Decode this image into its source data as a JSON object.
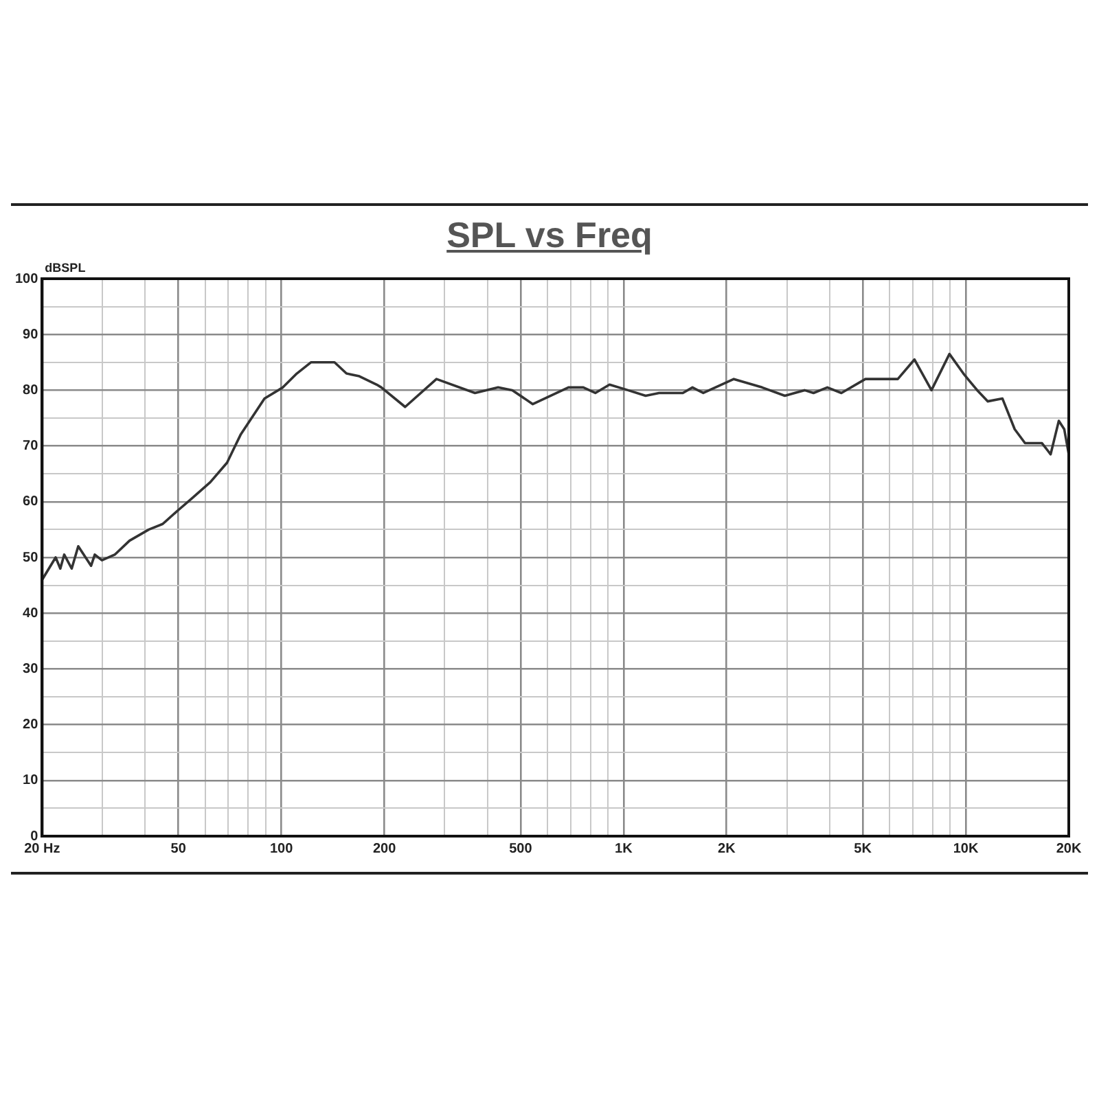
{
  "chart_data": {
    "type": "line",
    "title": "SPL vs Freq",
    "ylabel": "dBSPL",
    "x": [
      20,
      21.9,
      22.6,
      23.2,
      24.4,
      25.5,
      27.8,
      28.5,
      29.9,
      32.6,
      36,
      41,
      45,
      50,
      54.6,
      62,
      69.4,
      72.6,
      76,
      89.3,
      101,
      111,
      122,
      143,
      155,
      169,
      190,
      196,
      230,
      284,
      368,
      430,
      473,
      543,
      690,
      763,
      827,
      910,
      1030,
      1160,
      1270,
      1490,
      1590,
      1710,
      2100,
      2540,
      2960,
      3380,
      3590,
      3940,
      4330,
      5090,
      5980,
      6330,
      7080,
      7940,
      8960,
      9840,
      10300,
      10800,
      11600,
      12800,
      13900,
      14900,
      16700,
      17700,
      18700,
      19400,
      20000
    ],
    "series": [
      {
        "color": "#333333",
        "values": [
          46,
          50,
          48,
          50.5,
          48,
          52,
          48.5,
          50.5,
          49.5,
          50.5,
          53,
          55,
          56,
          58.5,
          60.5,
          63.5,
          67,
          69.5,
          72,
          78.5,
          80.5,
          83,
          85,
          85,
          83,
          82.5,
          81,
          80.5,
          77,
          82,
          79.5,
          80.5,
          80,
          77.5,
          80.5,
          80.5,
          79.5,
          81,
          80,
          79,
          79.5,
          79.5,
          80.5,
          79.5,
          82,
          80.5,
          79,
          80,
          79.5,
          80.5,
          79.5,
          82,
          82,
          82,
          85.5,
          80,
          86.5,
          83,
          81.5,
          80,
          78,
          78.5,
          73,
          70.5,
          70.5,
          68.5,
          74.5,
          73,
          68.5
        ]
      }
    ],
    "xlim": [
      20,
      20000
    ],
    "ylim": [
      0,
      100
    ],
    "log": "x",
    "xticks": [
      {
        "value": 20,
        "label": "20 Hz"
      },
      {
        "value": 30,
        "label": null
      },
      {
        "value": 40,
        "label": null
      },
      50,
      {
        "value": 60,
        "label": null
      },
      {
        "value": 70,
        "label": null
      },
      {
        "value": 80,
        "label": null
      },
      {
        "value": 90,
        "label": null
      },
      100,
      200,
      {
        "value": 300,
        "label": null
      },
      {
        "value": 400,
        "label": null
      },
      500,
      {
        "value": 600,
        "label": null
      },
      {
        "value": 700,
        "label": null
      },
      {
        "value": 800,
        "label": null
      },
      {
        "value": 900,
        "label": null
      },
      {
        "value": 1000,
        "label": "1K"
      },
      {
        "value": 2000,
        "label": "2K"
      },
      {
        "value": 3000,
        "label": null
      },
      {
        "value": 4000,
        "label": null
      },
      {
        "value": 5000,
        "label": "5K"
      },
      {
        "value": 6000,
        "label": null
      },
      {
        "value": 7000,
        "label": null
      },
      {
        "value": 8000,
        "label": null
      },
      {
        "value": 9000,
        "label": null
      },
      {
        "value": 10000,
        "label": "10K"
      },
      {
        "value": 20000,
        "label": "20K"
      }
    ],
    "yticks": [
      0,
      {
        "value": 5,
        "label": null
      },
      10,
      {
        "value": 15,
        "label": null
      },
      20,
      {
        "value": 25,
        "label": null
      },
      30,
      {
        "value": 35,
        "label": null
      },
      40,
      {
        "value": 45,
        "label": null
      },
      50,
      {
        "value": 55,
        "label": null
      },
      60,
      {
        "value": 65,
        "label": null
      },
      70,
      {
        "value": 75,
        "label": null
      },
      80,
      {
        "value": 85,
        "label": null
      },
      90,
      {
        "value": 95,
        "label": null
      },
      100
    ],
    "grid": true,
    "legend": false,
    "marker": "none",
    "line_style": "solid"
  }
}
